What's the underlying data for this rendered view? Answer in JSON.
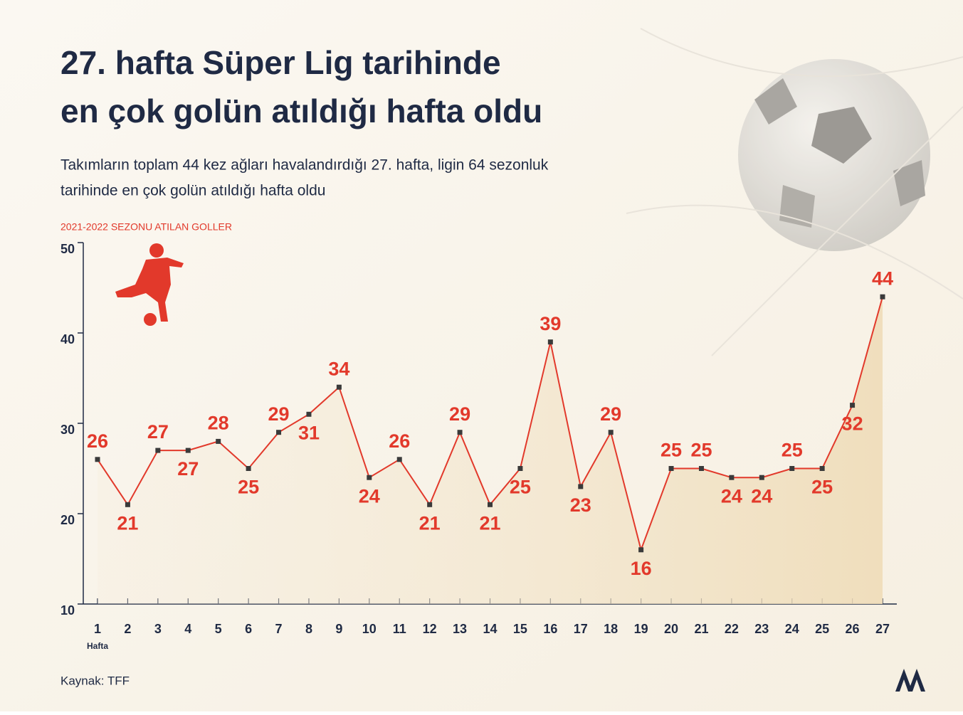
{
  "chart_data": {
    "type": "line",
    "title": [
      "27. hafta Süper Lig tarihinde",
      "en çok golün atıldığı hafta oldu"
    ],
    "subtitle": [
      "Takımların toplam 44 kez ağları havalandırdığı 27. hafta, ligin 64 sezonluk",
      "tarihinde en çok golün atıldığı hafta oldu"
    ],
    "y_label": "2021-2022 SEZONU ATILAN GOLLER",
    "x_label": "Hafta",
    "source": "Kaynak: TFF",
    "categories": [
      "1",
      "2",
      "3",
      "4",
      "5",
      "6",
      "7",
      "8",
      "9",
      "10",
      "11",
      "12",
      "13",
      "14",
      "15",
      "16",
      "17",
      "18",
      "19",
      "20",
      "21",
      "22",
      "23",
      "24",
      "25",
      "26",
      "27"
    ],
    "values": [
      26,
      21,
      27,
      27,
      28,
      25,
      29,
      31,
      34,
      24,
      26,
      21,
      29,
      21,
      25,
      39,
      23,
      29,
      16,
      25,
      25,
      24,
      24,
      25,
      25,
      32,
      44
    ],
    "color": "#e2392b",
    "ylim": [
      10,
      50
    ],
    "yticks": [
      10,
      20,
      30,
      40,
      50
    ]
  }
}
